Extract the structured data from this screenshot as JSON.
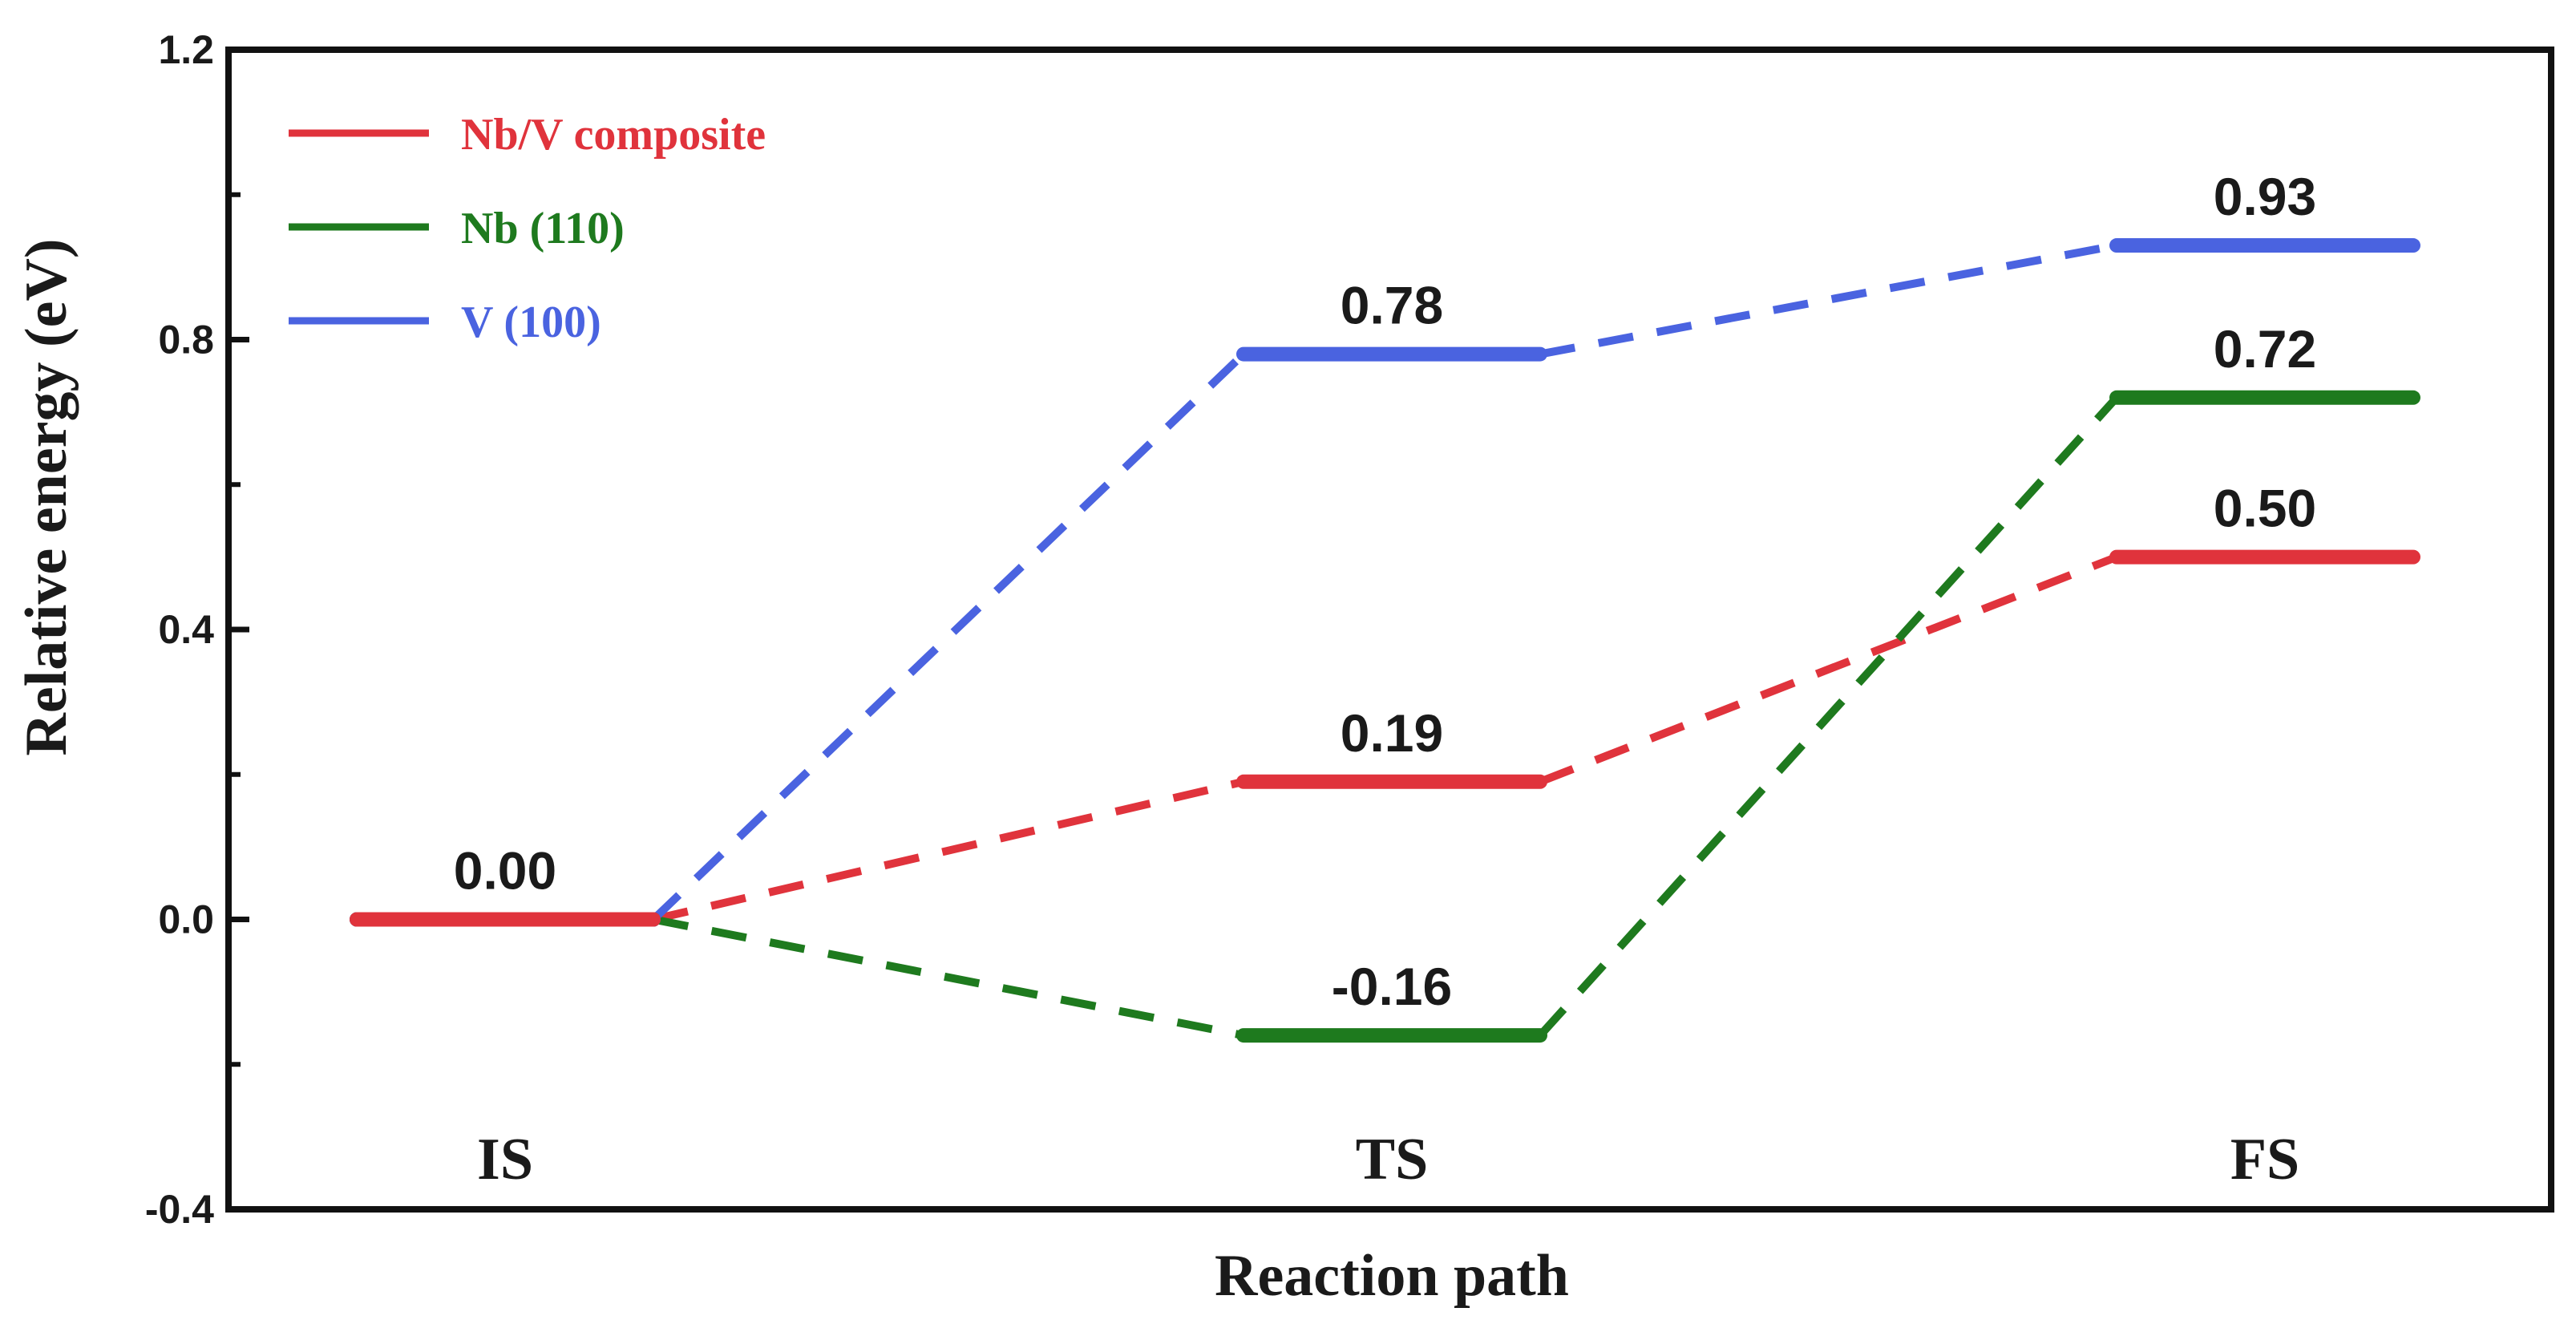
{
  "chart_data": {
    "type": "line",
    "title": "",
    "xlabel": "Reaction path",
    "ylabel": "Relative energy (eV)",
    "ylim": [
      -0.4,
      1.2
    ],
    "yticks": [
      -0.4,
      0.0,
      0.4,
      0.8,
      1.2
    ],
    "ytick_labels": [
      "-0.4",
      "0.0",
      "0.4",
      "0.8",
      "1.2"
    ],
    "categories": [
      "IS",
      "TS",
      "FS"
    ],
    "grid": false,
    "legend_position": "top-left",
    "series": [
      {
        "name": "Nb/V composite",
        "color": "#e0333c",
        "values": [
          0.0,
          0.19,
          0.5
        ],
        "labels": [
          "0.00",
          "0.19",
          "0.50"
        ]
      },
      {
        "name": "Nb (110)",
        "color": "#1e7a1e",
        "values": [
          0.0,
          -0.16,
          0.72
        ],
        "labels": [
          null,
          "-0.16",
          "0.72"
        ]
      },
      {
        "name": "V (100)",
        "color": "#4a63e0",
        "values": [
          0.0,
          0.78,
          0.93
        ],
        "labels": [
          null,
          "0.78",
          "0.93"
        ]
      }
    ]
  }
}
